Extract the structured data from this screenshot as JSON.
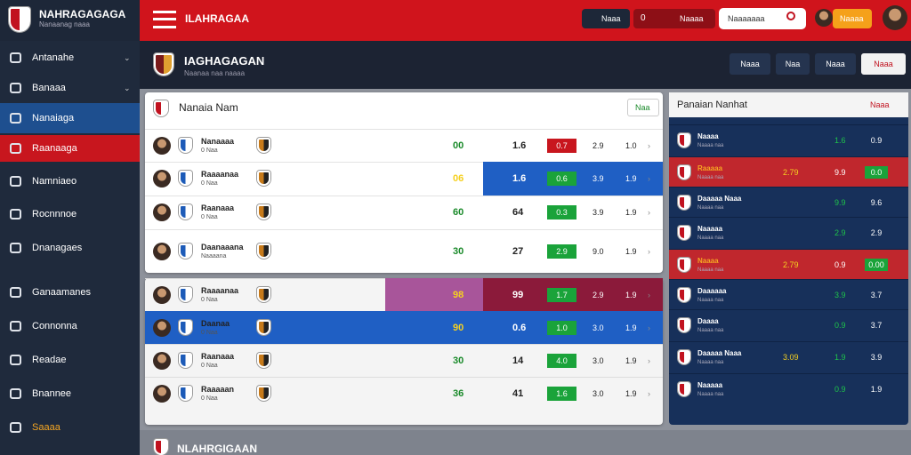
{
  "topbar": {
    "brand": "NAHRAGAGAGA",
    "brand_sub": "Nanaanag naaa",
    "title": "ILAHRAGAA",
    "live": "Naaa",
    "bet_count": "0",
    "bet_label": "Naaaa",
    "search": "Naaaaaaa",
    "user_btn": "Naaaa"
  },
  "sidebar": [
    "Antanahe",
    "Banaaa",
    "Nanaiaga",
    "Raanaaga",
    "Namniaeo",
    "Rocnnnoe",
    "Dnanagaes",
    "Ganaamanes",
    "Connonna",
    "Readae",
    "Bnannee",
    "Saaaa"
  ],
  "page": {
    "title": "IAGHAGAGAN",
    "subtitle": "Naanaa naa naaaa",
    "buttons": [
      "Naaa",
      "Naa",
      "Naaa",
      "Naaa"
    ]
  },
  "matches": {
    "title": "Nanaia Nam",
    "filter": "Naa",
    "rows": [
      {
        "name": "Nanaaaa",
        "sub": "0 Naa",
        "score": "00",
        "total": "1.6",
        "odds": "0.7",
        "o1": "2.9",
        "o2": "1.0"
      },
      {
        "name": "Raaaanaa",
        "sub": "0 Naa",
        "score": "06",
        "total": "1.6",
        "odds": "0.6",
        "o1": "3.9",
        "o2": "1.9"
      },
      {
        "name": "Raanaaa",
        "sub": "0 Naa",
        "score": "60",
        "total": "64",
        "odds": "0.3",
        "o1": "3.9",
        "o2": "1.9"
      },
      {
        "name": "Daanaaana",
        "sub": "Naaaana",
        "score": "30",
        "total": "27",
        "odds": "2.9",
        "o1": "9.0",
        "o2": "1.9"
      }
    ]
  },
  "matches2": {
    "rows": [
      {
        "name": "Raaaanaa",
        "sub": "0 Naa",
        "score": "98",
        "total": "99",
        "odds": "1.7",
        "o1": "2.9",
        "o2": "1.9"
      },
      {
        "name": "Daanaa",
        "sub": "0 Naa",
        "score": "90",
        "total": "0.6",
        "odds": "1.0",
        "o1": "3.0",
        "o2": "1.9"
      },
      {
        "name": "Raanaaa",
        "sub": "0 Naa",
        "score": "30",
        "total": "14",
        "odds": "4.0",
        "o1": "3.0",
        "o2": "1.9"
      },
      {
        "name": "Raaaaan",
        "sub": "0 Naa",
        "score": "36",
        "total": "41",
        "odds": "1.6",
        "o1": "3.0",
        "o2": "1.9"
      }
    ]
  },
  "side": {
    "title": "Panaian Nanhat",
    "filter": "Naaa",
    "rows": [
      {
        "name": "Naaaa",
        "sub": "Naaaa naa",
        "a": "",
        "b": "1.6",
        "c": "0.9"
      },
      {
        "name": "Raaaaa",
        "sub": "Naaaa naa",
        "a": "2.79",
        "b": "9.9",
        "c": "0.0"
      },
      {
        "name": "Daaaaa Naaa",
        "sub": "Naaaa naa",
        "a": "",
        "b": "9.9",
        "c": "9.6"
      },
      {
        "name": "Naaaaa",
        "sub": "Naaaa naa",
        "a": "",
        "b": "2.9",
        "c": "2.9"
      },
      {
        "name": "Naaaa",
        "sub": "Naaaa naa",
        "a": "2.79",
        "b": "0.9",
        "c": "0.00"
      },
      {
        "name": "Daaaaaa",
        "sub": "Naaaa naa",
        "a": "",
        "b": "3.9",
        "c": "3.7"
      },
      {
        "name": "Daaaa",
        "sub": "Naaaa naa",
        "a": "",
        "b": "0.9",
        "c": "3.7"
      },
      {
        "name": "Daaaaa Naaa",
        "sub": "Naaaa naa",
        "a": "3.09",
        "b": "1.9",
        "c": "3.9"
      },
      {
        "name": "Naaaaa",
        "sub": "Naaaa naa",
        "a": "",
        "b": "0.9",
        "c": "1.9"
      }
    ]
  },
  "footer": "NLAHRGIGAAN"
}
